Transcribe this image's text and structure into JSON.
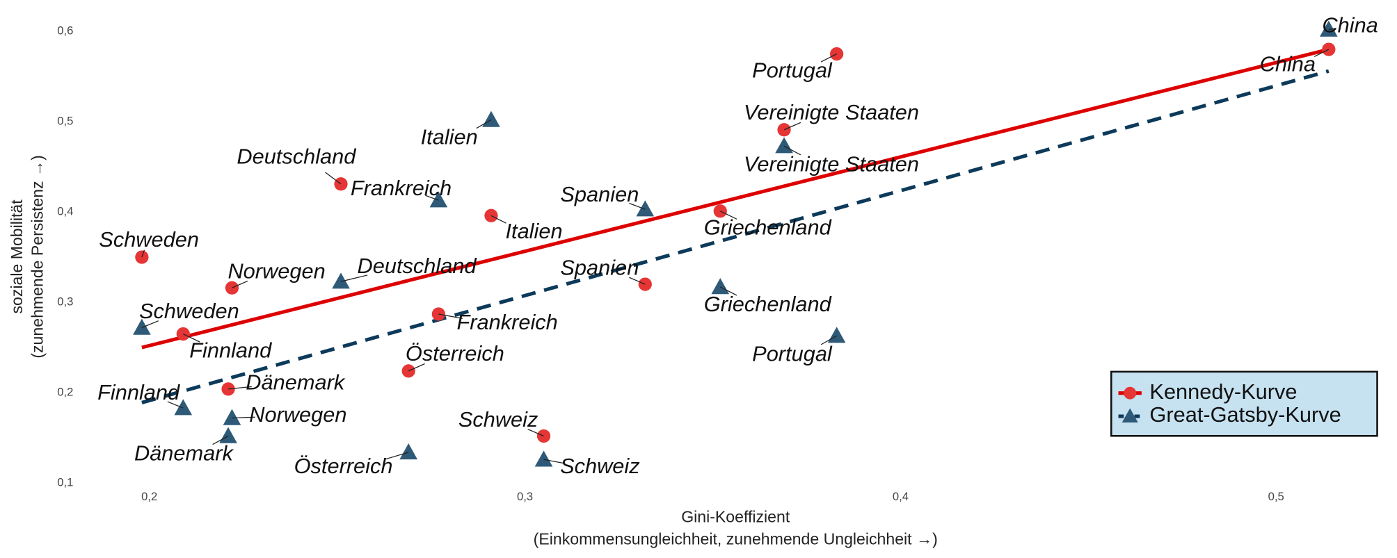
{
  "chart_data": {
    "type": "scatter",
    "x_label": [
      "Gini-Koeffizient",
      "(Einkommensungleichheit, zunehmende Ungleichheit →)"
    ],
    "y_label": [
      "soziale Mobilität",
      "(zunehmende Persistenz →)"
    ],
    "categories": [
      "Schweden",
      "Finnland",
      "Norwegen",
      "Dänemark",
      "Deutschland",
      "Frankreich",
      "Österreich",
      "Italien",
      "Schweiz",
      "Spanien",
      "Griechenland",
      "Vereinigte Staaten",
      "Portugal",
      "China"
    ],
    "x": [
      0.198,
      0.209,
      0.222,
      0.221,
      0.251,
      0.277,
      0.269,
      0.291,
      0.305,
      0.332,
      0.352,
      0.369,
      0.383,
      0.514
    ],
    "trend_x": [
      0.198,
      0.514
    ],
    "series": [
      {
        "name": "Kennedy-Kurve",
        "color": "#e53535",
        "line_color": "#dd0000",
        "marker": "circle",
        "dashed": false,
        "values": [
          0.35,
          0.265,
          0.316,
          0.204,
          0.431,
          0.287,
          0.224,
          0.396,
          0.152,
          0.32,
          0.401,
          0.491,
          0.575,
          0.58
        ],
        "trend": [
          0.25,
          0.58
        ]
      },
      {
        "name": "Great-Gatsby-Kurve",
        "color": "#2e5a78",
        "line_color": "#0d3a5a",
        "marker": "triangle",
        "dashed": true,
        "values": [
          0.272,
          0.183,
          0.172,
          0.152,
          0.323,
          0.413,
          0.134,
          0.502,
          0.126,
          0.403,
          0.317,
          0.473,
          0.263,
          0.602
        ],
        "trend": [
          0.189,
          0.556
        ]
      }
    ],
    "xlim": [
      0.18,
      0.53
    ],
    "ylim": [
      0.09,
      0.61
    ],
    "xticks": [
      {
        "value": 0.2,
        "label": "0,2"
      },
      {
        "value": 0.3,
        "label": "0,3"
      },
      {
        "value": 0.4,
        "label": "0,4"
      },
      {
        "value": 0.5,
        "label": "0,5"
      }
    ],
    "yticks": [
      {
        "value": 0.1,
        "label": "0,1"
      },
      {
        "value": 0.2,
        "label": "0,2"
      },
      {
        "value": 0.3,
        "label": "0,3"
      },
      {
        "value": 0.4,
        "label": "0,4"
      },
      {
        "value": 0.5,
        "label": "0,5"
      },
      {
        "value": 0.6,
        "label": "0,6"
      }
    ],
    "legend": "bottom-right"
  }
}
